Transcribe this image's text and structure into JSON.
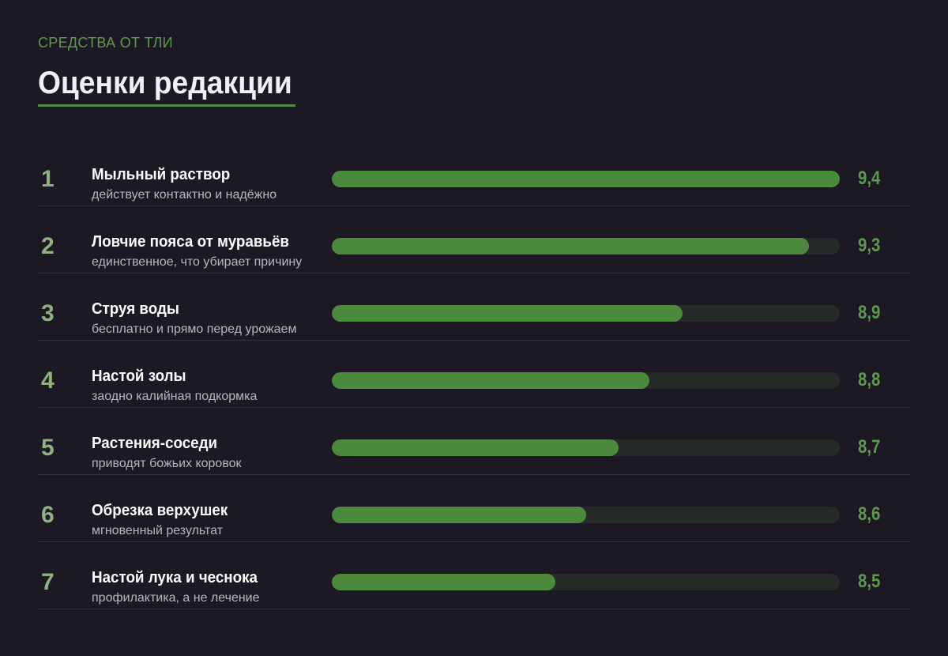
{
  "header": {
    "eyebrow": "СРЕДСТВА ОТ ТЛИ",
    "title": "Оценки редакции"
  },
  "colors": {
    "background": "#1c1925",
    "accent": "#4b8a3c",
    "track": "#262b27"
  },
  "chart_data": {
    "type": "bar",
    "orientation": "horizontal",
    "title": "Оценки редакции",
    "categories": [
      "Мыльный раствор",
      "Ловчие пояса от муравьёв",
      "Струя воды",
      "Настой золы",
      "Растения-соседи",
      "Обрезка верхушек",
      "Настой лука и чеснока"
    ],
    "values": [
      9.4,
      9.3,
      8.9,
      8.8,
      8.7,
      8.6,
      8.5
    ],
    "bar_fill_fraction": [
      1.0,
      0.94,
      0.69,
      0.625,
      0.565,
      0.5,
      0.44
    ],
    "items": [
      {
        "rank": "1",
        "name": "Мыльный раствор",
        "desc": "действует контактно и надёжно",
        "score": "9,4"
      },
      {
        "rank": "2",
        "name": "Ловчие пояса от муравьёв",
        "desc": "единственное, что убирает причину",
        "score": "9,3"
      },
      {
        "rank": "3",
        "name": "Струя воды",
        "desc": "бесплатно и прямо перед урожаем",
        "score": "8,9"
      },
      {
        "rank": "4",
        "name": "Настой золы",
        "desc": "заодно калийная подкормка",
        "score": "8,8"
      },
      {
        "rank": "5",
        "name": "Растения-соседи",
        "desc": "приводят божьих коровок",
        "score": "8,7"
      },
      {
        "rank": "6",
        "name": "Обрезка верхушек",
        "desc": "мгновенный результат",
        "score": "8,6"
      },
      {
        "rank": "7",
        "name": "Настой лука и чеснока",
        "desc": "профилактика, а не лечение",
        "score": "8,5"
      }
    ]
  }
}
